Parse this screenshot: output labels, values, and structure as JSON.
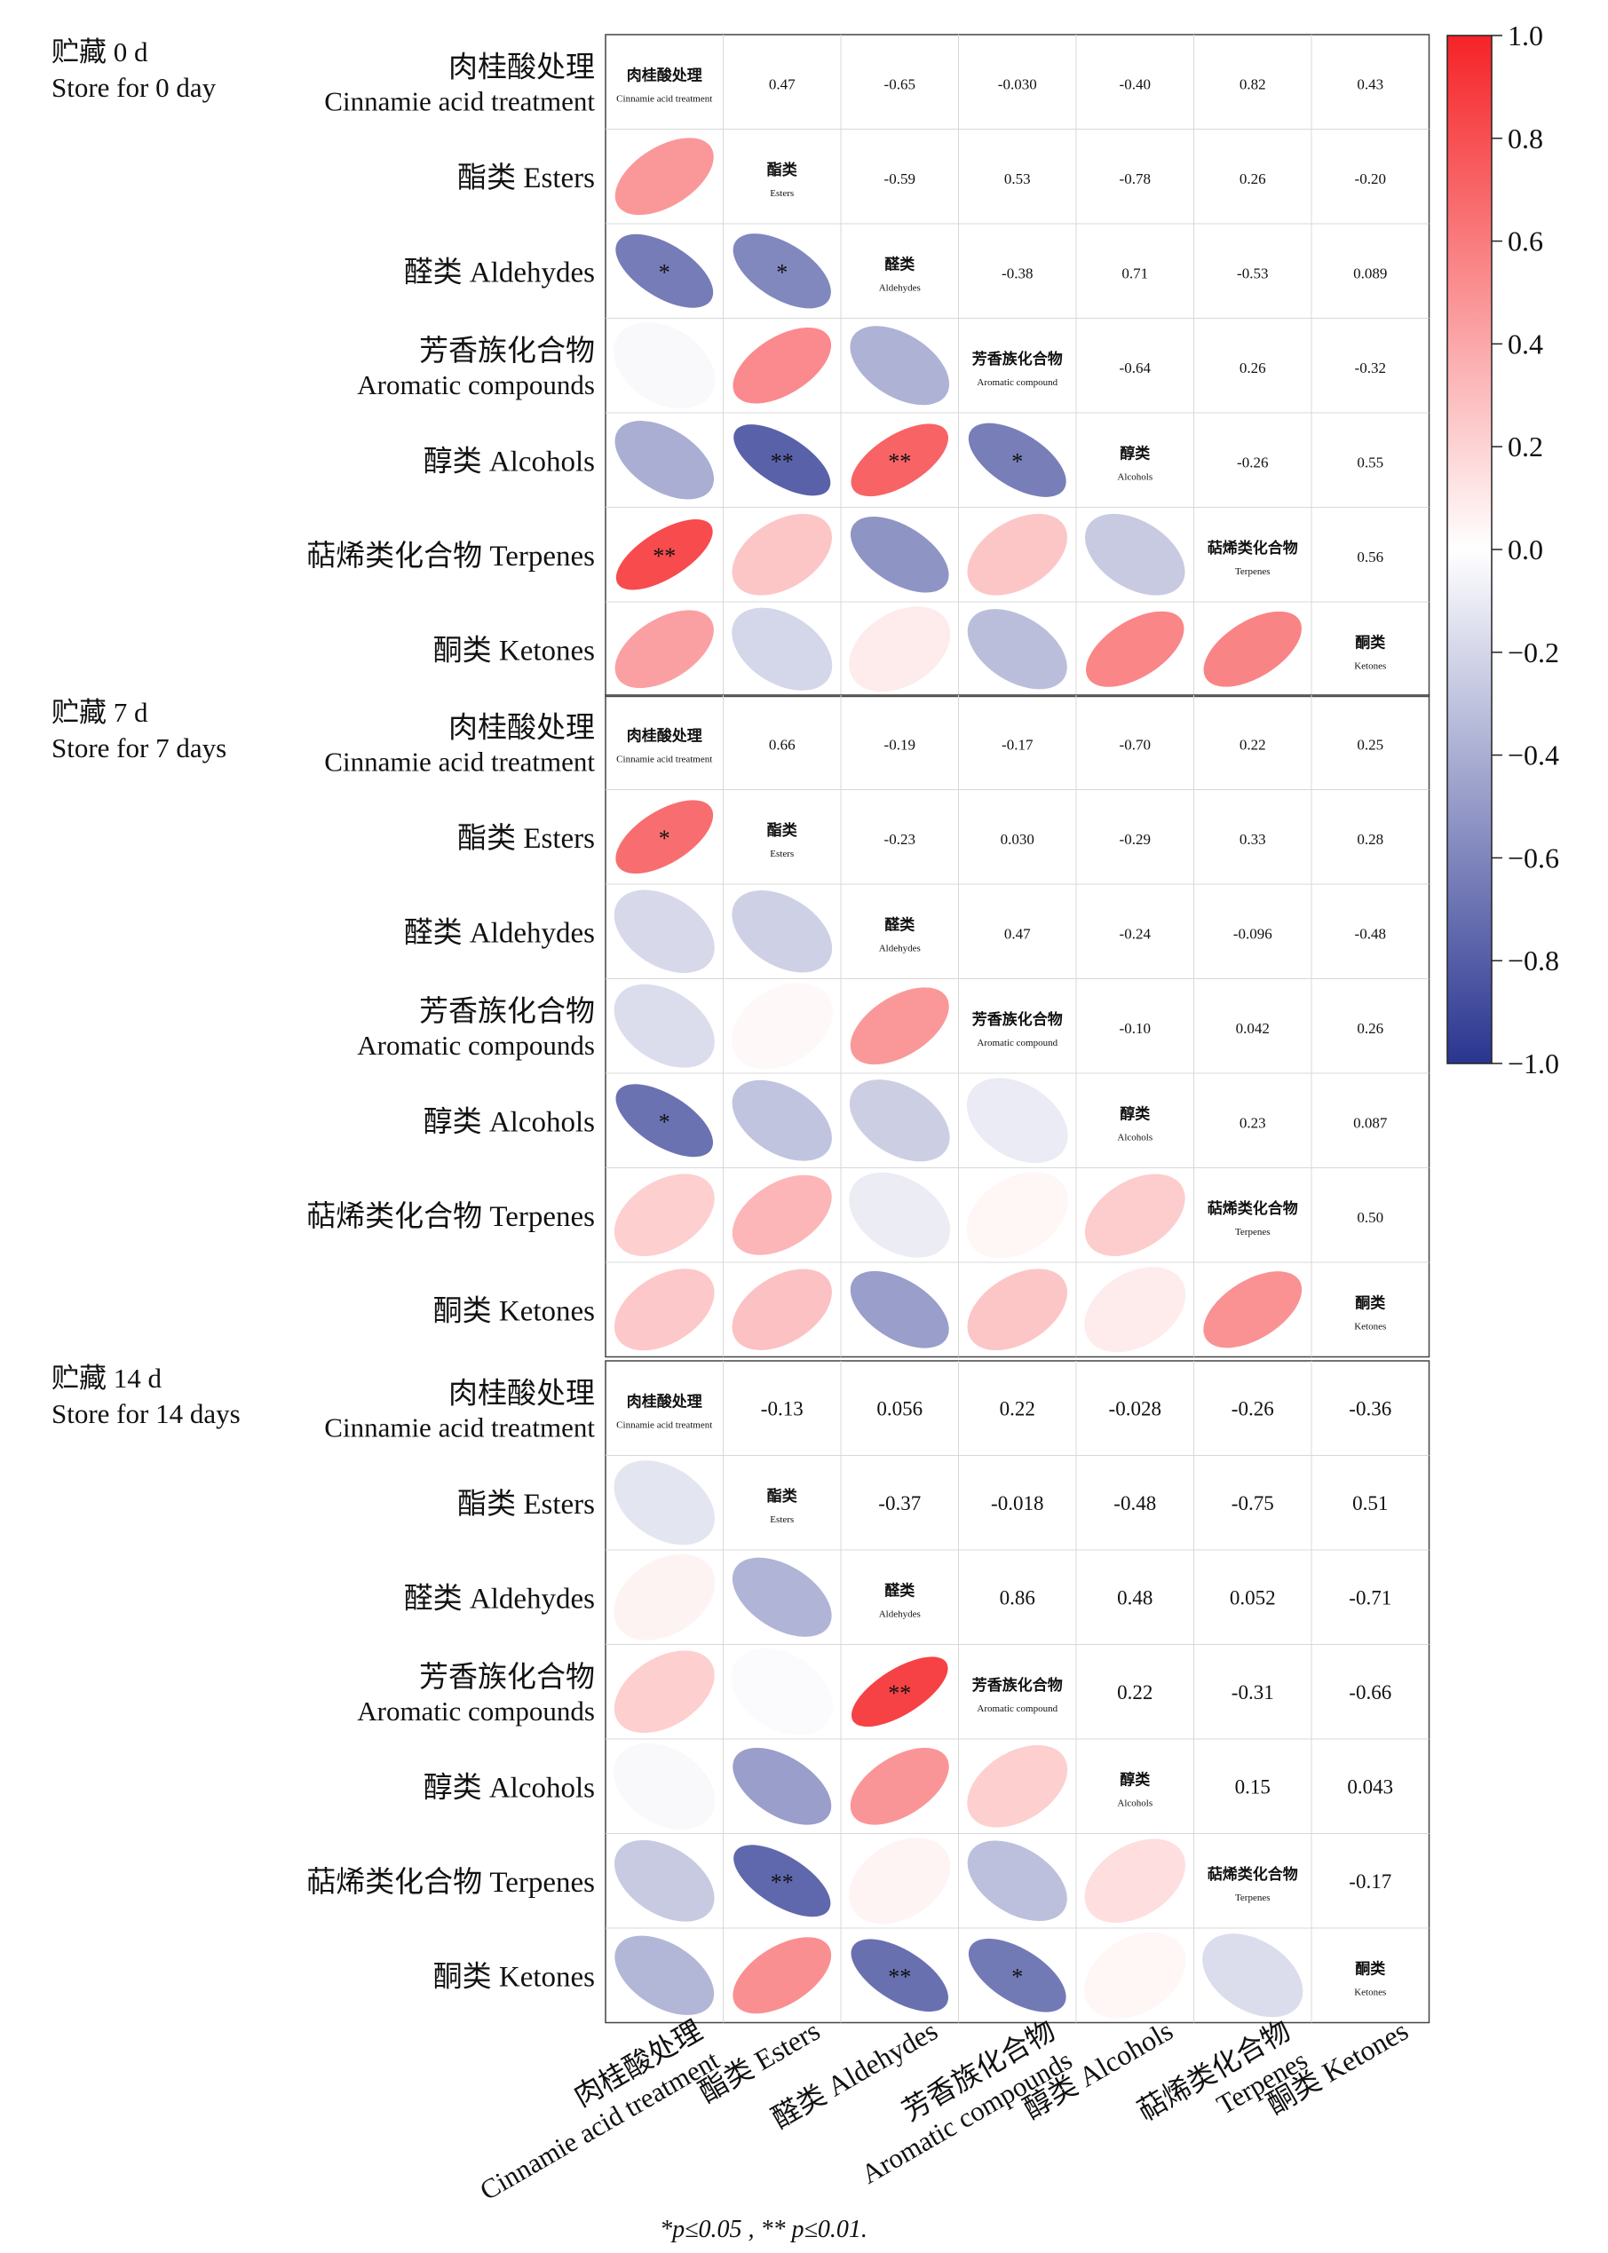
{
  "chart_data": {
    "type": "heatmap",
    "variables_cn": [
      "肉桂酸处理",
      "酯类",
      "醛类",
      "芳香族化合物",
      "醇类",
      "萜烯类化合物",
      "酮类"
    ],
    "row_labels": [
      {
        "cn": "肉桂酸处理",
        "en": "Cinnamie acid treatment"
      },
      {
        "cn": "酯类",
        "en": "Esters"
      },
      {
        "cn": "醛类",
        "en": "Aldehydes"
      },
      {
        "cn": "芳香族化合物",
        "en": "Aromatic compounds"
      },
      {
        "cn": "醇类",
        "en": "Alcohols"
      },
      {
        "cn": "萜烯类化合物",
        "en": "Terpenes"
      },
      {
        "cn": "酮类",
        "en": "Ketones"
      }
    ],
    "diag_labels": [
      {
        "cn": "肉桂酸处理",
        "en": "Cinnamie acid treatment"
      },
      {
        "cn": "酯类",
        "en": "Esters"
      },
      {
        "cn": "醛类",
        "en": "Aldehydes"
      },
      {
        "cn": "芳香族化合物",
        "en": "Aromatic compound"
      },
      {
        "cn": "醇类",
        "en": "Alcohols"
      },
      {
        "cn": "萜烯类化合物",
        "en": "Terpenes"
      },
      {
        "cn": "酮类",
        "en": "Ketones"
      }
    ],
    "x_tick_labels": [
      {
        "cn": "肉桂酸处理",
        "en": "Cinnamie acid treatment"
      },
      {
        "cn": "酯类",
        "en": "Esters"
      },
      {
        "cn": "醛类",
        "en": "Aldehydes"
      },
      {
        "cn": "芳香族化合物",
        "en": "Aromatic compounds"
      },
      {
        "cn": "醇类",
        "en": "Alcohols"
      },
      {
        "cn": "萜烯类化合物",
        "en": "Terpenes"
      },
      {
        "cn": "酮类",
        "en": "Ketones"
      }
    ],
    "panels": [
      {
        "title_cn": "贮藏 0 d",
        "title_en": "Store for 0 day",
        "matrix": [
          [
            "1",
            "0.47",
            "-0.65",
            "-0.030",
            "-0.40",
            "0.82",
            "0.43"
          ],
          [
            "0.47",
            "1",
            "-0.59",
            "0.53",
            "-0.78",
            "0.26",
            "-0.20"
          ],
          [
            "-0.65",
            "-0.59",
            "1",
            "-0.38",
            "0.71",
            "-0.53",
            "0.089"
          ],
          [
            "-0.030",
            "0.53",
            "-0.38",
            "1",
            "-0.64",
            "0.26",
            "-0.32"
          ],
          [
            "-0.40",
            "-0.78",
            "0.71",
            "-0.64",
            "1",
            "-0.26",
            "0.55"
          ],
          [
            "0.82",
            "0.26",
            "-0.53",
            "0.26",
            "-0.26",
            "1",
            "0.56"
          ],
          [
            "0.43",
            "-0.20",
            "0.089",
            "-0.32",
            "0.55",
            "0.56",
            "1"
          ]
        ],
        "significance": [
          [
            "",
            "",
            "",
            "",
            "",
            "",
            ""
          ],
          [
            "",
            "",
            "",
            "",
            "",
            "",
            ""
          ],
          [
            "*",
            "*",
            "",
            "",
            "",
            "",
            ""
          ],
          [
            "",
            "",
            "",
            "",
            "",
            "",
            ""
          ],
          [
            "",
            "**",
            "**",
            "*",
            "",
            "",
            ""
          ],
          [
            "**",
            "",
            "",
            "",
            "",
            "",
            ""
          ],
          [
            "",
            "",
            "",
            "",
            "",
            "",
            ""
          ]
        ]
      },
      {
        "title_cn": "贮藏 7 d",
        "title_en": "Store for 7 days",
        "matrix": [
          [
            "1",
            "0.66",
            "-0.19",
            "-0.17",
            "-0.70",
            "0.22",
            "0.25"
          ],
          [
            "0.66",
            "1",
            "-0.23",
            "0.030",
            "-0.29",
            "0.33",
            "0.28"
          ],
          [
            "-0.19",
            "-0.23",
            "1",
            "0.47",
            "-0.24",
            "-0.096",
            "-0.48"
          ],
          [
            "-0.17",
            "0.030",
            "0.47",
            "1",
            "-0.10",
            "0.042",
            "0.26"
          ],
          [
            "-0.70",
            "-0.29",
            "-0.24",
            "-0.10",
            "1",
            "0.23",
            "0.087"
          ],
          [
            "0.22",
            "0.33",
            "-0.096",
            "0.042",
            "0.23",
            "1",
            "0.50"
          ],
          [
            "0.25",
            "0.28",
            "-0.48",
            "0.26",
            "0.087",
            "0.50",
            "1"
          ]
        ],
        "significance": [
          [
            "",
            "",
            "",
            "",
            "",
            "",
            ""
          ],
          [
            "*",
            "",
            "",
            "",
            "",
            "",
            ""
          ],
          [
            "",
            "",
            "",
            "",
            "",
            "",
            ""
          ],
          [
            "",
            "",
            "",
            "",
            "",
            "",
            ""
          ],
          [
            "*",
            "",
            "",
            "",
            "",
            "",
            ""
          ],
          [
            "",
            "",
            "",
            "",
            "",
            "",
            ""
          ],
          [
            "",
            "",
            "",
            "",
            "",
            "",
            ""
          ]
        ]
      },
      {
        "title_cn": "贮藏 14 d",
        "title_en": "Store for 14 days",
        "matrix": [
          [
            "1",
            "-0.13",
            "0.056",
            "0.22",
            "-0.028",
            "-0.26",
            "-0.36"
          ],
          [
            "-0.13",
            "1",
            "-0.37",
            "-0.018",
            "-0.48",
            "-0.75",
            "0.51"
          ],
          [
            "0.056",
            "-0.37",
            "1",
            "0.86",
            "0.48",
            "0.052",
            "-0.71"
          ],
          [
            "0.22",
            "-0.018",
            "0.86",
            "1",
            "0.22",
            "-0.31",
            "-0.66"
          ],
          [
            "-0.028",
            "-0.48",
            "0.48",
            "0.22",
            "1",
            "0.15",
            "0.043"
          ],
          [
            "-0.26",
            "-0.75",
            "0.052",
            "-0.31",
            "0.15",
            "1",
            "-0.17"
          ],
          [
            "-0.36",
            "0.51",
            "-0.71",
            "-0.66",
            "0.043",
            "-0.17",
            "1"
          ]
        ],
        "significance": [
          [
            "",
            "",
            "",
            "",
            "",
            "",
            ""
          ],
          [
            "",
            "",
            "",
            "",
            "",
            "",
            ""
          ],
          [
            "",
            "",
            "",
            "",
            "",
            "",
            ""
          ],
          [
            "",
            "",
            "**",
            "",
            "",
            "",
            ""
          ],
          [
            "",
            "",
            "",
            "",
            "",
            "",
            ""
          ],
          [
            "",
            "**",
            "",
            "",
            "",
            "",
            ""
          ],
          [
            "",
            "",
            "**",
            "*",
            "",
            "",
            ""
          ]
        ]
      }
    ],
    "colorbar": {
      "range": [
        -1.0,
        1.0
      ],
      "ticks": [
        "1.0",
        "0.8",
        "0.6",
        "0.4",
        "0.2",
        "0.0",
        "−0.2",
        "−0.4",
        "−0.6",
        "−0.8",
        "−1.0"
      ],
      "colors": {
        "positive": "#f52327",
        "zero": "#ffffff",
        "negative": "#2a3590"
      }
    },
    "footnote": "*p≤0.05 , ** p≤0.01."
  }
}
